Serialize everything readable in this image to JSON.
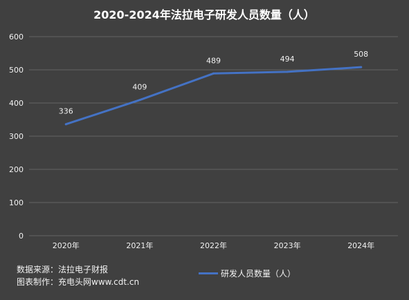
{
  "chart_data": {
    "type": "line",
    "title": "2020-2024年法拉电子研发人员数量（人）",
    "categories": [
      "2020年",
      "2021年",
      "2022年",
      "2023年",
      "2024年"
    ],
    "series": [
      {
        "name": "研发人员数量（人）",
        "values": [
          336,
          409,
          489,
          494,
          508
        ],
        "color": "#4472c4"
      }
    ],
    "data_labels": [
      "336",
      "409",
      "489",
      "494",
      "508"
    ],
    "ylim": [
      0,
      600
    ],
    "y_ticks": [
      0,
      100,
      200,
      300,
      400,
      500,
      600
    ],
    "y_tick_labels": [
      "0",
      "100",
      "200",
      "300",
      "400",
      "500",
      "600"
    ],
    "grid": true,
    "legend_position": "bottom-center"
  },
  "footer": {
    "source_line": "数据来源：法拉电子财报",
    "made_by_line": "图表制作：充电头网www.cdt.cn"
  },
  "colors": {
    "background": "#404040",
    "grid": "#646464",
    "text": "#f2f2f2",
    "title": "#ffffff"
  }
}
